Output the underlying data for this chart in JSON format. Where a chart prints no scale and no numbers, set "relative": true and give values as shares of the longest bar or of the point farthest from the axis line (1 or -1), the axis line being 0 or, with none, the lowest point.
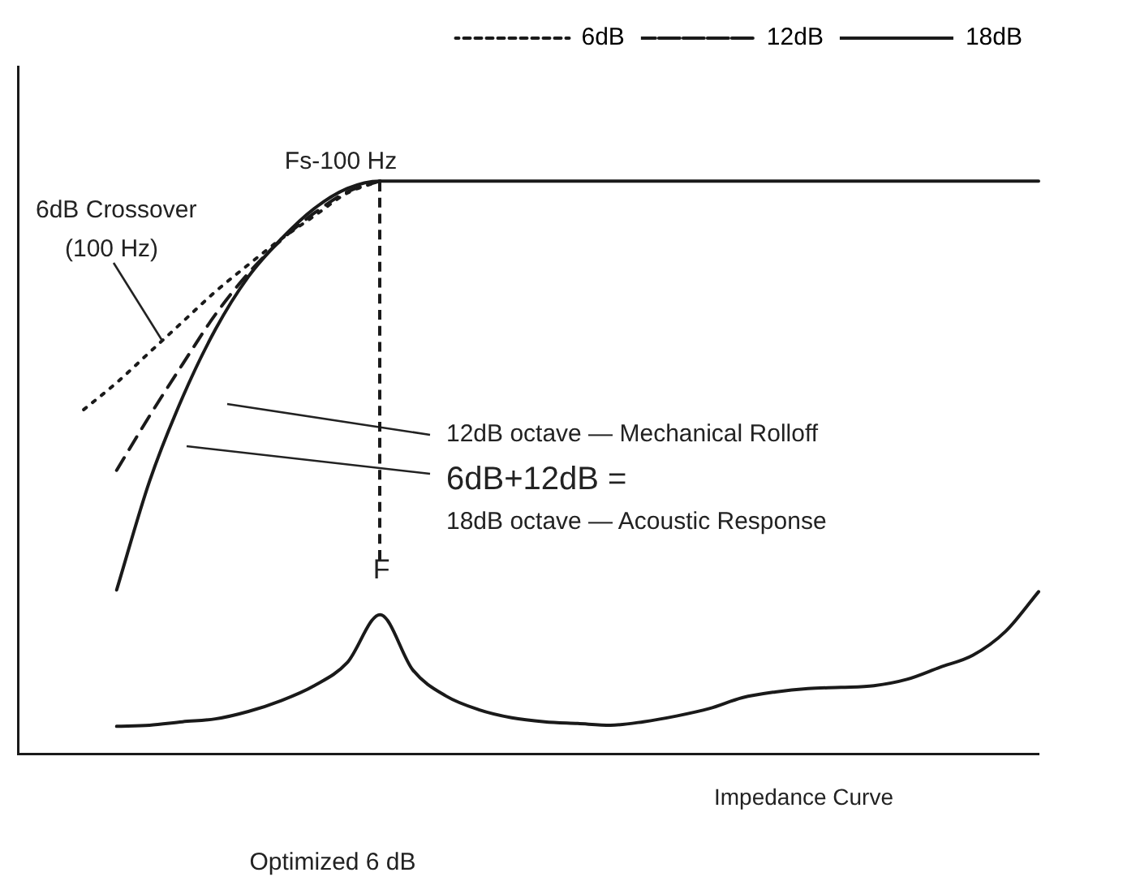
{
  "chart_data": {
    "type": "line",
    "relative": true,
    "xlabel": "Optimized 6 dB",
    "legend": "top right",
    "grid": false,
    "marker": "none",
    "categories": [
      null,
      null,
      null,
      null,
      null,
      null,
      null,
      null,
      null,
      null,
      null,
      null,
      null,
      null,
      null,
      null,
      null,
      null,
      null,
      null,
      null,
      null,
      null,
      null,
      null,
      null,
      null,
      null,
      null,
      null,
      null,
      null
    ],
    "series": [
      {
        "name": "6dB",
        "color": "#1a1a1a",
        "line_style": "dotted",
        "values": [
          null,
          null,
          0.601,
          0.648,
          0.701,
          0.754,
          0.807,
          0.854,
          0.899,
          0.939,
          0.979,
          1,
          null,
          null,
          null,
          null,
          null,
          null,
          null,
          null,
          null,
          null,
          null,
          null,
          null,
          null,
          null,
          null,
          null,
          null,
          null,
          null
        ]
      },
      {
        "name": "12dB",
        "color": "#1a1a1a",
        "line_style": "dashed",
        "values": [
          null,
          null,
          null,
          0.495,
          0.59,
          0.68,
          0.767,
          0.839,
          0.897,
          0.944,
          0.981,
          1,
          null,
          null,
          null,
          null,
          null,
          null,
          null,
          null,
          null,
          null,
          null,
          null,
          null,
          null,
          null,
          null,
          null,
          null,
          null,
          null
        ]
      },
      {
        "name": "18dB",
        "color": "#1a1a1a",
        "line_style": "solid",
        "values": [
          null,
          null,
          null,
          0.286,
          0.476,
          0.622,
          0.741,
          0.833,
          0.899,
          0.952,
          0.987,
          1,
          1,
          1,
          1,
          1,
          1,
          1,
          1,
          1,
          1,
          1,
          1,
          1,
          1,
          1,
          1,
          1,
          1,
          1,
          1,
          1
        ]
      },
      {
        "color": "#1a1a1a",
        "line_style": "solid",
        "values": [
          null,
          null,
          null,
          0.048,
          0.05,
          0.056,
          0.061,
          0.074,
          0.093,
          0.119,
          0.159,
          0.243,
          0.146,
          0.101,
          0.077,
          0.063,
          0.056,
          0.053,
          0.05,
          0.056,
          0.066,
          0.079,
          0.098,
          0.108,
          0.114,
          0.116,
          0.119,
          0.13,
          0.151,
          0.172,
          0.214,
          0.283
        ]
      }
    ],
    "annotations": [
      "Fs-100 Hz",
      "6dB Crossover\n(100 Hz)",
      "12dB octave — Mechanical Rolloff",
      "6dB+12dB =",
      "18dB octave — Acoustic Response",
      "F",
      "Impedance Curve"
    ]
  }
}
